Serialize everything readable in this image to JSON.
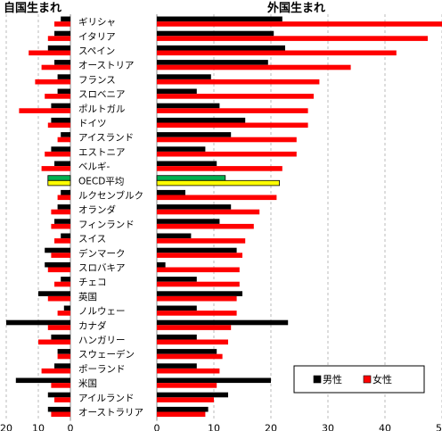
{
  "chart_data": [
    {
      "type": "bar",
      "title": "自国生まれ",
      "orientation": "horizontal",
      "direction": "reversed",
      "xlim": [
        0,
        20
      ],
      "ticks": [
        "20",
        "10",
        "0"
      ],
      "grid": true,
      "categories": [
        "ギリシャ",
        "イタリア",
        "スペイン",
        "オーストリア",
        "フランス",
        "スロベニア",
        "ポルトガル",
        "ドイツ",
        "アイスランド",
        "エストニア",
        "ベルギ-",
        "OECD平均",
        "ルクセンブルク",
        "オランダ",
        "フィンランド",
        "スイス",
        "デンマーク",
        "スロバキア",
        "チェコ",
        "英国",
        "ノルウェー",
        "カナダ",
        "ハンガリー",
        "スウェーデン",
        "ポーランド",
        "米国",
        "アイルランド",
        "オーストラリア"
      ],
      "series": [
        {
          "name": "男性",
          "color": "#000000",
          "values": [
            3,
            5,
            7,
            5,
            4,
            4,
            6,
            6,
            3,
            6,
            5,
            7,
            3,
            4,
            5,
            3,
            8,
            8,
            3,
            10,
            2,
            20,
            6,
            4,
            5,
            17,
            7,
            7
          ]
        },
        {
          "name": "女性",
          "color": "#ff0000",
          "values": [
            5,
            7,
            13,
            9,
            11,
            8,
            16,
            7,
            4,
            8,
            9,
            7,
            4,
            6,
            6,
            5,
            6,
            7,
            5,
            7,
            4,
            7,
            10,
            4,
            9,
            6,
            5,
            6
          ]
        }
      ],
      "highlight": {
        "category": "OECD平均",
        "colors": [
          "#00b050",
          "#ffff00"
        ]
      }
    },
    {
      "type": "bar",
      "title": "外国生まれ",
      "orientation": "horizontal",
      "xlim": [
        0,
        52
      ],
      "ticks": [
        "0",
        "10",
        "20",
        "30",
        "40",
        "50"
      ],
      "grid": true,
      "legend": "bottom-right",
      "categories": [
        "ギリシャ",
        "イタリア",
        "スペイン",
        "オーストリア",
        "フランス",
        "スロベニア",
        "ポルトガル",
        "ドイツ",
        "アイスランド",
        "エストニア",
        "ベルギ-",
        "OECD平均",
        "ルクセンブルク",
        "オランダ",
        "フィンランド",
        "スイス",
        "デンマーク",
        "スロバキア",
        "チェコ",
        "英国",
        "ノルウェー",
        "カナダ",
        "ハンガリー",
        "スウェーデン",
        "ポーランド",
        "米国",
        "アイルランド",
        "オーストラリア"
      ],
      "series": [
        {
          "name": "男性",
          "color": "#000000",
          "values": [
            22,
            20.5,
            22.5,
            19.5,
            9.5,
            7,
            11,
            15.5,
            13,
            8.5,
            10.5,
            12,
            5,
            13,
            11,
            6,
            14,
            1.5,
            7,
            15,
            7,
            23,
            7,
            10.5,
            7,
            20,
            12.5,
            9
          ]
        },
        {
          "name": "女性",
          "color": "#ff0000",
          "values": [
            52,
            47.5,
            42,
            34,
            28.5,
            27.5,
            26.5,
            26.5,
            24.5,
            24.5,
            22,
            21.5,
            21,
            18,
            17,
            15.5,
            15,
            14.5,
            14.5,
            14,
            14,
            13,
            12.5,
            11.5,
            11,
            10.5,
            10,
            8.5
          ]
        }
      ],
      "highlight": {
        "category": "OECD平均",
        "colors": [
          "#00b050",
          "#ffff00"
        ]
      }
    }
  ]
}
